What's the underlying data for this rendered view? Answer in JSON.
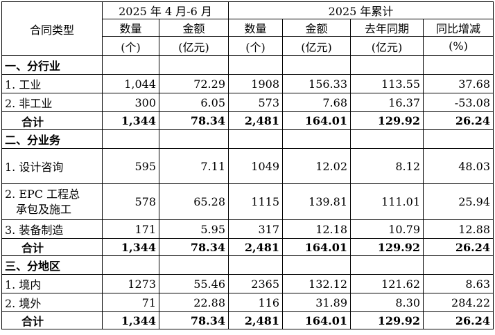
{
  "header": {
    "type_col": "合同类型",
    "group_q2": "2025 年 4 月-6 月",
    "group_ytd": "2025 年累计",
    "qty": "数量",
    "qty_unit": "(个)",
    "amount": "金额",
    "amount_unit": "(亿元)",
    "prev": "去年同期",
    "prev_unit": "(亿元)",
    "yoy": "同比增减",
    "yoy_unit": "(%)"
  },
  "sections": [
    {
      "title": "一、分行业",
      "rows": [
        {
          "label": "1. 工业",
          "q_qty": "1,044",
          "q_amt": "72.29",
          "y_qty": "1908",
          "y_amt": "156.33",
          "prev": "113.55",
          "yoy": "37.68"
        },
        {
          "label": "2. 非工业",
          "q_qty": "300",
          "q_amt": "6.05",
          "y_qty": "573",
          "y_amt": "7.68",
          "prev": "16.37",
          "yoy": "-53.08"
        }
      ],
      "total": {
        "label": "合计",
        "q_qty": "1,344",
        "q_amt": "78.34",
        "y_qty": "2,481",
        "y_amt": "164.01",
        "prev": "129.92",
        "yoy": "26.24"
      }
    },
    {
      "title": "二、分业务",
      "rows": [
        {
          "label": "1. 设计咨询",
          "q_qty": "595",
          "q_amt": "7.11",
          "y_qty": "1049",
          "y_amt": "12.02",
          "prev": "8.12",
          "yoy": "48.03"
        },
        {
          "label_1": "2. EPC 工程总",
          "label_2": "承包及施工",
          "q_qty": "578",
          "q_amt": "65.28",
          "y_qty": "1115",
          "y_amt": "139.81",
          "prev": "111.01",
          "yoy": "25.94"
        },
        {
          "label": "3. 装备制造",
          "q_qty": "171",
          "q_amt": "5.95",
          "y_qty": "317",
          "y_amt": "12.18",
          "prev": "10.79",
          "yoy": "12.88"
        }
      ],
      "total": {
        "label": "合计",
        "q_qty": "1,344",
        "q_amt": "78.34",
        "y_qty": "2,481",
        "y_amt": "164.01",
        "prev": "129.92",
        "yoy": "26.24"
      }
    },
    {
      "title": "三、分地区",
      "rows": [
        {
          "label": "1. 境内",
          "q_qty": "1273",
          "q_amt": "55.46",
          "y_qty": "2365",
          "y_amt": "132.12",
          "prev": "121.62",
          "yoy": "8.63"
        },
        {
          "label": "2. 境外",
          "q_qty": "71",
          "q_amt": "22.88",
          "y_qty": "116",
          "y_amt": "31.89",
          "prev": "8.30",
          "yoy": "284.22"
        }
      ],
      "total": {
        "label": "合计",
        "q_qty": "1,344",
        "q_amt": "78.34",
        "y_qty": "2,481",
        "y_amt": "164.01",
        "prev": "129.92",
        "yoy": "26.24"
      }
    }
  ]
}
